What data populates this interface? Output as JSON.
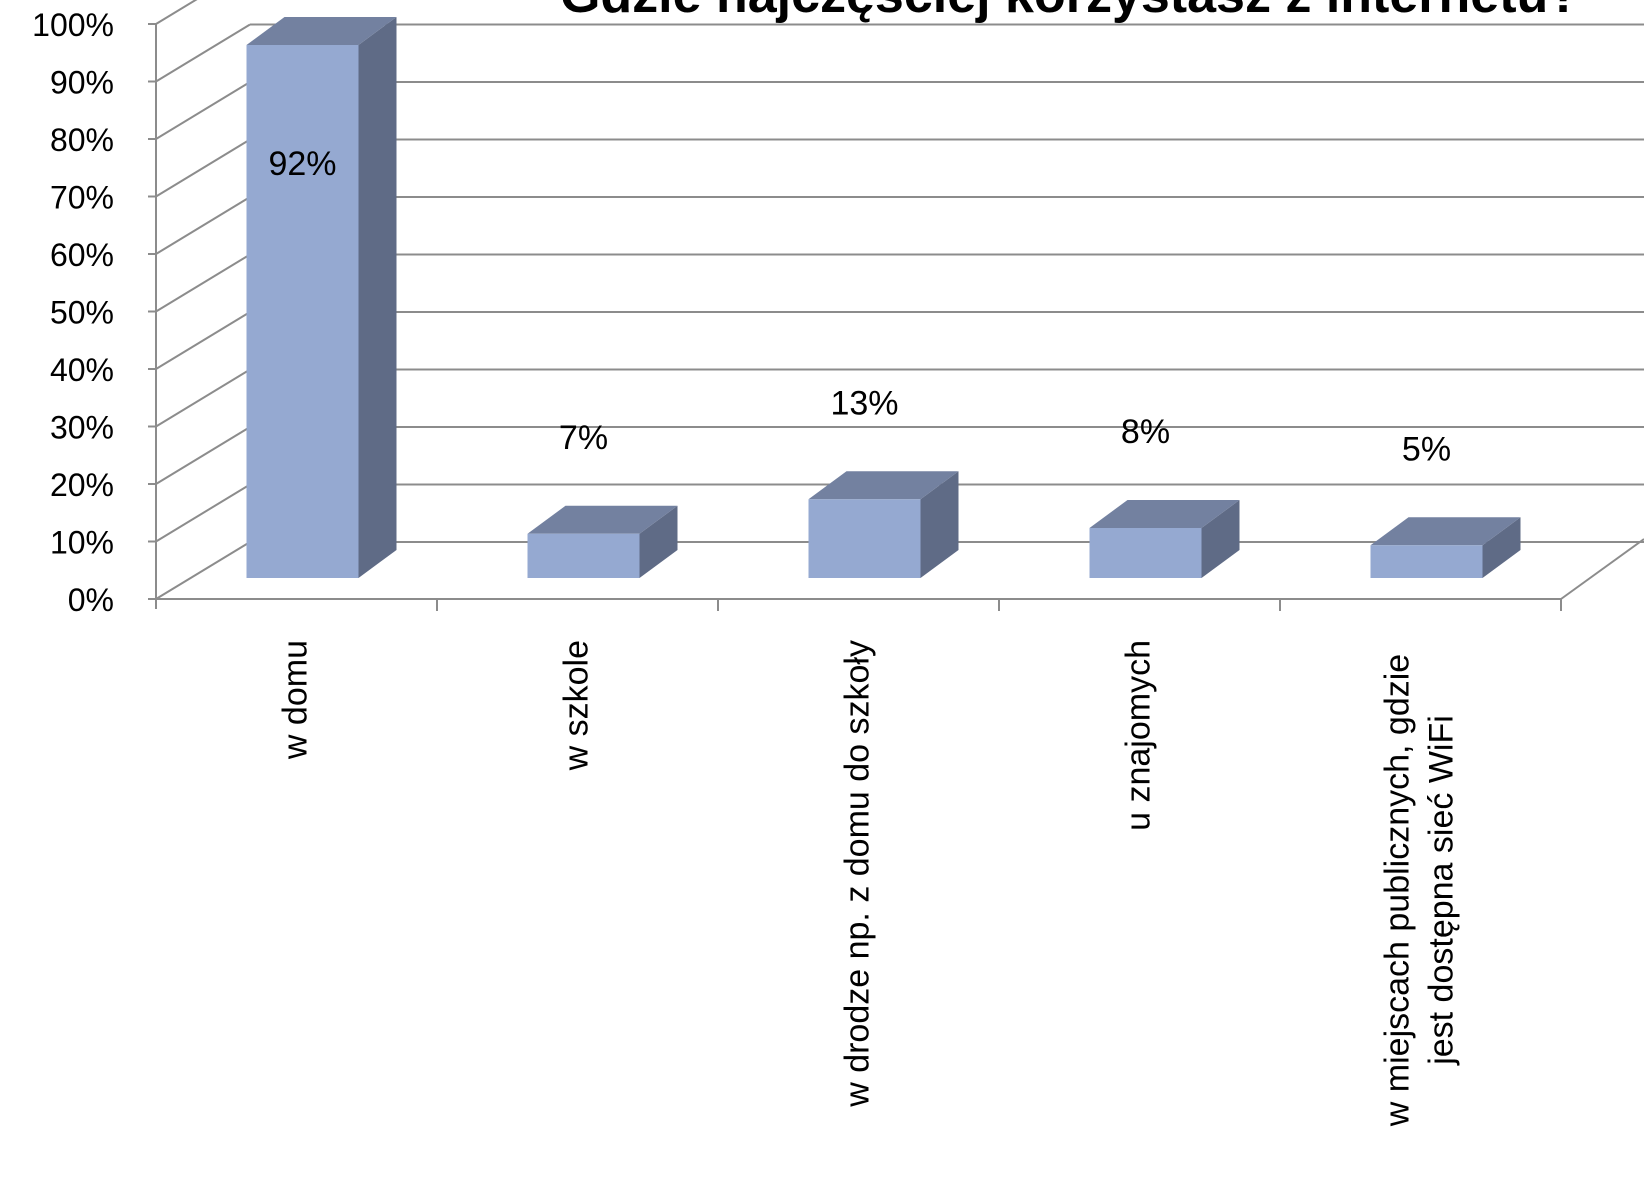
{
  "chart_data": {
    "type": "bar",
    "title": "Gdzie najczęściej korzystasz z internetu?",
    "xlabel": "",
    "ylabel": "",
    "ylim": [
      0,
      100
    ],
    "yticks": [
      "0%",
      "10%",
      "20%",
      "30%",
      "40%",
      "50%",
      "60%",
      "70%",
      "80%",
      "90%",
      "100%"
    ],
    "categories": [
      [
        "w domu"
      ],
      [
        "w szkole"
      ],
      [
        "w drodze np. z domu do szkoły"
      ],
      [
        "u znajomych"
      ],
      [
        "w miejscach publicznych, gdzie",
        "jest dostępna sieć WiFi"
      ]
    ],
    "values": [
      92,
      7,
      13,
      8,
      5
    ],
    "value_labels": [
      "92%",
      "7%",
      "13%",
      "8%",
      "5%"
    ],
    "grid": true,
    "style": "3d-column",
    "colors": {
      "bar_front": "#95A9D1",
      "bar_side": "#5F6B86",
      "bar_top": "#7381A0",
      "grid": "#8C8C8C",
      "text": "#000000"
    }
  }
}
